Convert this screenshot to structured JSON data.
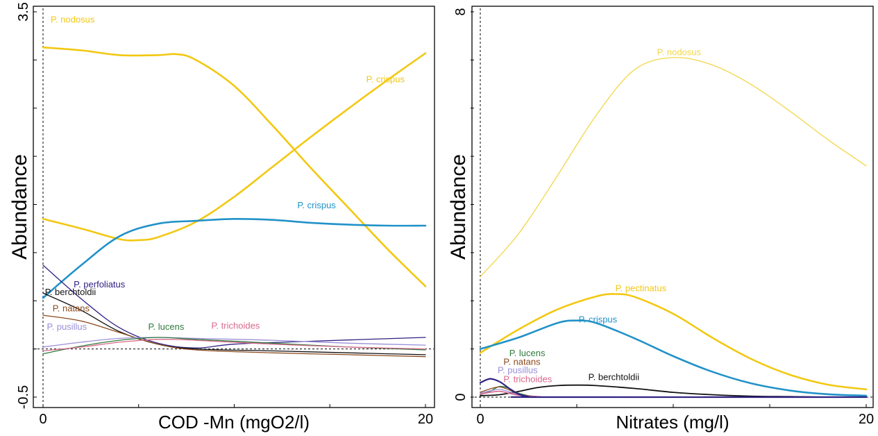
{
  "chart_data": [
    {
      "type": "line",
      "xlabel": "COD -Mn (mgO2/l)",
      "ylabel": "Abundance",
      "xlim": [
        0,
        20
      ],
      "ylim": [
        -0.5,
        3.5
      ],
      "x_ticks": [
        "0",
        "20"
      ],
      "y_ticks": [
        "-0.5",
        "3.5"
      ],
      "series": [
        {
          "name": "P. nodosus",
          "color": "#f2c811",
          "width": 2.6,
          "label_x": 0.4,
          "label_y": 3.39,
          "anchor": "start",
          "x": [
            0,
            2,
            4,
            6,
            7,
            8,
            10,
            12,
            14,
            16,
            18,
            20
          ],
          "y": [
            3.13,
            3.1,
            3.05,
            3.05,
            3.06,
            3.0,
            2.73,
            2.32,
            1.88,
            1.46,
            1.04,
            0.65
          ]
        },
        {
          "name": "P. crispus",
          "color": "#f2c811",
          "width": 2.6,
          "label_x": 16.9,
          "label_y": 2.77,
          "anchor": "start",
          "x": [
            0,
            2,
            4,
            5,
            6,
            8,
            10,
            12,
            14,
            16,
            18,
            20
          ],
          "y": [
            1.35,
            1.25,
            1.14,
            1.13,
            1.16,
            1.32,
            1.58,
            1.89,
            2.2,
            2.5,
            2.79,
            3.07
          ]
        },
        {
          "name": "P. crispus",
          "color": "#2192c8",
          "width": 2.6,
          "label_x": 13.3,
          "label_y": 1.46,
          "anchor": "start",
          "x": [
            0,
            2,
            4,
            6,
            8,
            10,
            12,
            14,
            16,
            18,
            20
          ],
          "y": [
            0.53,
            0.87,
            1.17,
            1.3,
            1.33,
            1.35,
            1.34,
            1.31,
            1.29,
            1.28,
            1.28
          ]
        },
        {
          "name": "P. perfoliatus",
          "color": "#2e2183",
          "width": 1.3,
          "label_x": 1.6,
          "label_y": 0.64,
          "anchor": "start",
          "x": [
            0,
            2,
            4,
            6,
            8,
            10,
            14,
            20
          ],
          "y": [
            0.87,
            0.52,
            0.22,
            0.06,
            0.01,
            0.05,
            0.08,
            0.12
          ]
        },
        {
          "name": "P. berchtoldii",
          "color": "#111111",
          "width": 1.3,
          "label_x": 0.1,
          "label_y": 0.56,
          "anchor": "start",
          "x": [
            0,
            2,
            4,
            6,
            8,
            12,
            16,
            20
          ],
          "y": [
            0.58,
            0.4,
            0.18,
            0.05,
            0.0,
            -0.02,
            -0.04,
            -0.06
          ]
        },
        {
          "name": "P. natans",
          "color": "#8a4a1d",
          "width": 1.3,
          "label_x": 0.5,
          "label_y": 0.39,
          "anchor": "start",
          "x": [
            0,
            2,
            4,
            6,
            8,
            12,
            16,
            20
          ],
          "y": [
            0.35,
            0.29,
            0.17,
            0.05,
            -0.01,
            -0.04,
            -0.06,
            -0.08
          ]
        },
        {
          "name": "P. pusillus",
          "color": "#9a8fd8",
          "width": 1.3,
          "label_x": 0.2,
          "label_y": 0.2,
          "anchor": "start",
          "x": [
            0,
            2,
            4,
            6,
            8,
            12,
            16,
            20
          ],
          "y": [
            0.02,
            0.07,
            0.11,
            0.12,
            0.11,
            0.09,
            0.06,
            0.04
          ]
        },
        {
          "name": "P. lucens",
          "color": "#2f7a3c",
          "width": 1.3,
          "label_x": 5.5,
          "label_y": 0.2,
          "anchor": "start",
          "x": [
            0,
            2,
            4,
            6,
            8,
            12,
            16,
            20
          ],
          "y": [
            -0.05,
            0.03,
            0.09,
            0.12,
            0.1,
            0.06,
            0.02,
            -0.01
          ]
        },
        {
          "name": "P. trichoides",
          "color": "#d9688b",
          "width": 1.3,
          "label_x": 8.8,
          "label_y": 0.21,
          "anchor": "start",
          "x": [
            0,
            2,
            4,
            6,
            8,
            12,
            16,
            20
          ],
          "y": [
            -0.02,
            0.02,
            0.07,
            0.1,
            0.09,
            0.05,
            0.02,
            0.0
          ]
        }
      ]
    },
    {
      "type": "line",
      "xlabel": "Nitrates (mg/l)",
      "ylabel": "Abundance",
      "xlim": [
        0,
        20
      ],
      "ylim": [
        0,
        8
      ],
      "x_ticks": [
        "0",
        "20"
      ],
      "y_ticks": [
        "0",
        "8"
      ],
      "series": [
        {
          "name": "P. nodosus",
          "color": "#f2d648",
          "width": 1.3,
          "label_x": 10.3,
          "label_y": 7.1,
          "anchor": "middle",
          "x": [
            0,
            2,
            4,
            6,
            8,
            10,
            12,
            14,
            16,
            18,
            20
          ],
          "y": [
            2.5,
            3.4,
            4.6,
            5.85,
            6.8,
            7.05,
            6.9,
            6.5,
            5.95,
            5.35,
            4.8
          ]
        },
        {
          "name": "P. pectinatus",
          "color": "#f2c811",
          "width": 2.6,
          "label_x": 7.0,
          "label_y": 2.2,
          "anchor": "start",
          "x": [
            0,
            2,
            4,
            6,
            7,
            8,
            10,
            12,
            14,
            16,
            18,
            20
          ],
          "y": [
            0.92,
            1.41,
            1.82,
            2.09,
            2.14,
            2.08,
            1.73,
            1.24,
            0.8,
            0.47,
            0.26,
            0.16
          ]
        },
        {
          "name": "P. crispus",
          "color": "#2192c8",
          "width": 2.6,
          "label_x": 5.1,
          "label_y": 1.55,
          "anchor": "start",
          "x": [
            0,
            2,
            4,
            5,
            6,
            8,
            10,
            12,
            14,
            16,
            18,
            20
          ],
          "y": [
            1.0,
            1.24,
            1.54,
            1.59,
            1.54,
            1.22,
            0.85,
            0.53,
            0.29,
            0.14,
            0.06,
            0.03
          ]
        },
        {
          "name": "P. berchtoldii",
          "color": "#111111",
          "width": 1.8,
          "label_x": 5.6,
          "label_y": 0.35,
          "anchor": "start",
          "x": [
            0,
            1,
            2,
            3,
            4,
            5,
            6,
            8,
            10,
            12,
            14,
            16,
            18,
            20
          ],
          "y": [
            0.03,
            0.05,
            0.12,
            0.2,
            0.24,
            0.25,
            0.24,
            0.18,
            0.1,
            0.05,
            0.02,
            0.01,
            0.0,
            0.0
          ]
        },
        {
          "name": "P. lucens",
          "color": "#2f7a3c",
          "width": 1.3,
          "label_x": 1.5,
          "label_y": 0.85,
          "anchor": "start",
          "x": [
            0,
            0.5,
            1,
            1.5,
            2,
            3,
            5,
            20
          ],
          "y": [
            0.05,
            0.12,
            0.22,
            0.18,
            0.08,
            0.01,
            0.0,
            0.0
          ]
        },
        {
          "name": "P. natans",
          "color": "#8a4a1d",
          "width": 1.3,
          "label_x": 1.2,
          "label_y": 0.67,
          "anchor": "start",
          "x": [
            0,
            0.5,
            1,
            1.5,
            2,
            3,
            5,
            20
          ],
          "y": [
            0.1,
            0.17,
            0.21,
            0.15,
            0.06,
            0.01,
            0.0,
            0.0
          ]
        },
        {
          "name": "P. pusillus",
          "color": "#9a8fd8",
          "width": 1.3,
          "label_x": 0.9,
          "label_y": 0.5,
          "anchor": "start",
          "x": [
            0,
            0.5,
            1,
            1.5,
            2,
            3,
            5,
            20
          ],
          "y": [
            0.08,
            0.13,
            0.16,
            0.11,
            0.05,
            0.01,
            0.0,
            0.0
          ]
        },
        {
          "name": "P. trichoides",
          "color": "#d9688b",
          "width": 1.6,
          "label_x": 1.2,
          "label_y": 0.31,
          "anchor": "start",
          "x": [
            0,
            0.5,
            1,
            1.5,
            2,
            3,
            5,
            20
          ],
          "y": [
            0.06,
            0.1,
            0.12,
            0.08,
            0.04,
            0.01,
            0.0,
            0.0
          ]
        },
        {
          "name": "",
          "color": "#2e2183",
          "width": 2.2,
          "label_x": 0,
          "label_y": 0,
          "anchor": "start",
          "x": [
            0,
            0.5,
            1,
            1.5,
            2,
            2.5,
            3,
            20
          ],
          "y": [
            0.3,
            0.38,
            0.32,
            0.18,
            0.06,
            0.01,
            0.0,
            0.0
          ]
        }
      ]
    }
  ]
}
